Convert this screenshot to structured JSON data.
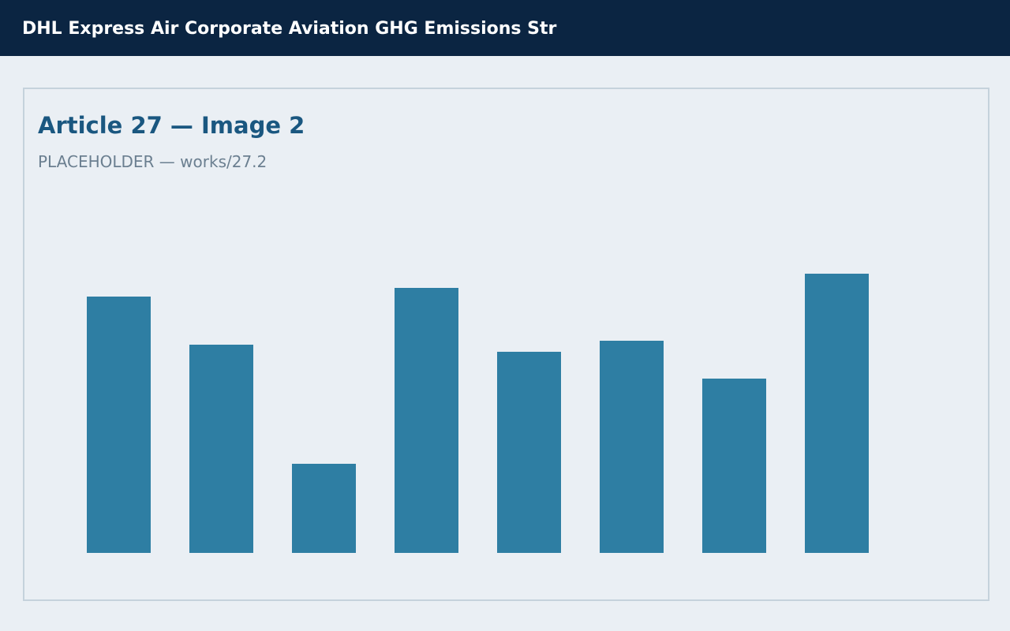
{
  "header": {
    "title": "DHL Express Air Corporate Aviation GHG Emissions Str"
  },
  "article": {
    "title": "Article 27 — Image 2",
    "subtitle": "PLACEHOLDER — works/27.2"
  },
  "chart_data": {
    "type": "bar",
    "values": [
      325,
      264,
      113,
      336,
      255,
      269,
      221,
      354
    ],
    "color": "#2e7ea3",
    "ylim": [
      0,
      400
    ],
    "grid": false
  }
}
